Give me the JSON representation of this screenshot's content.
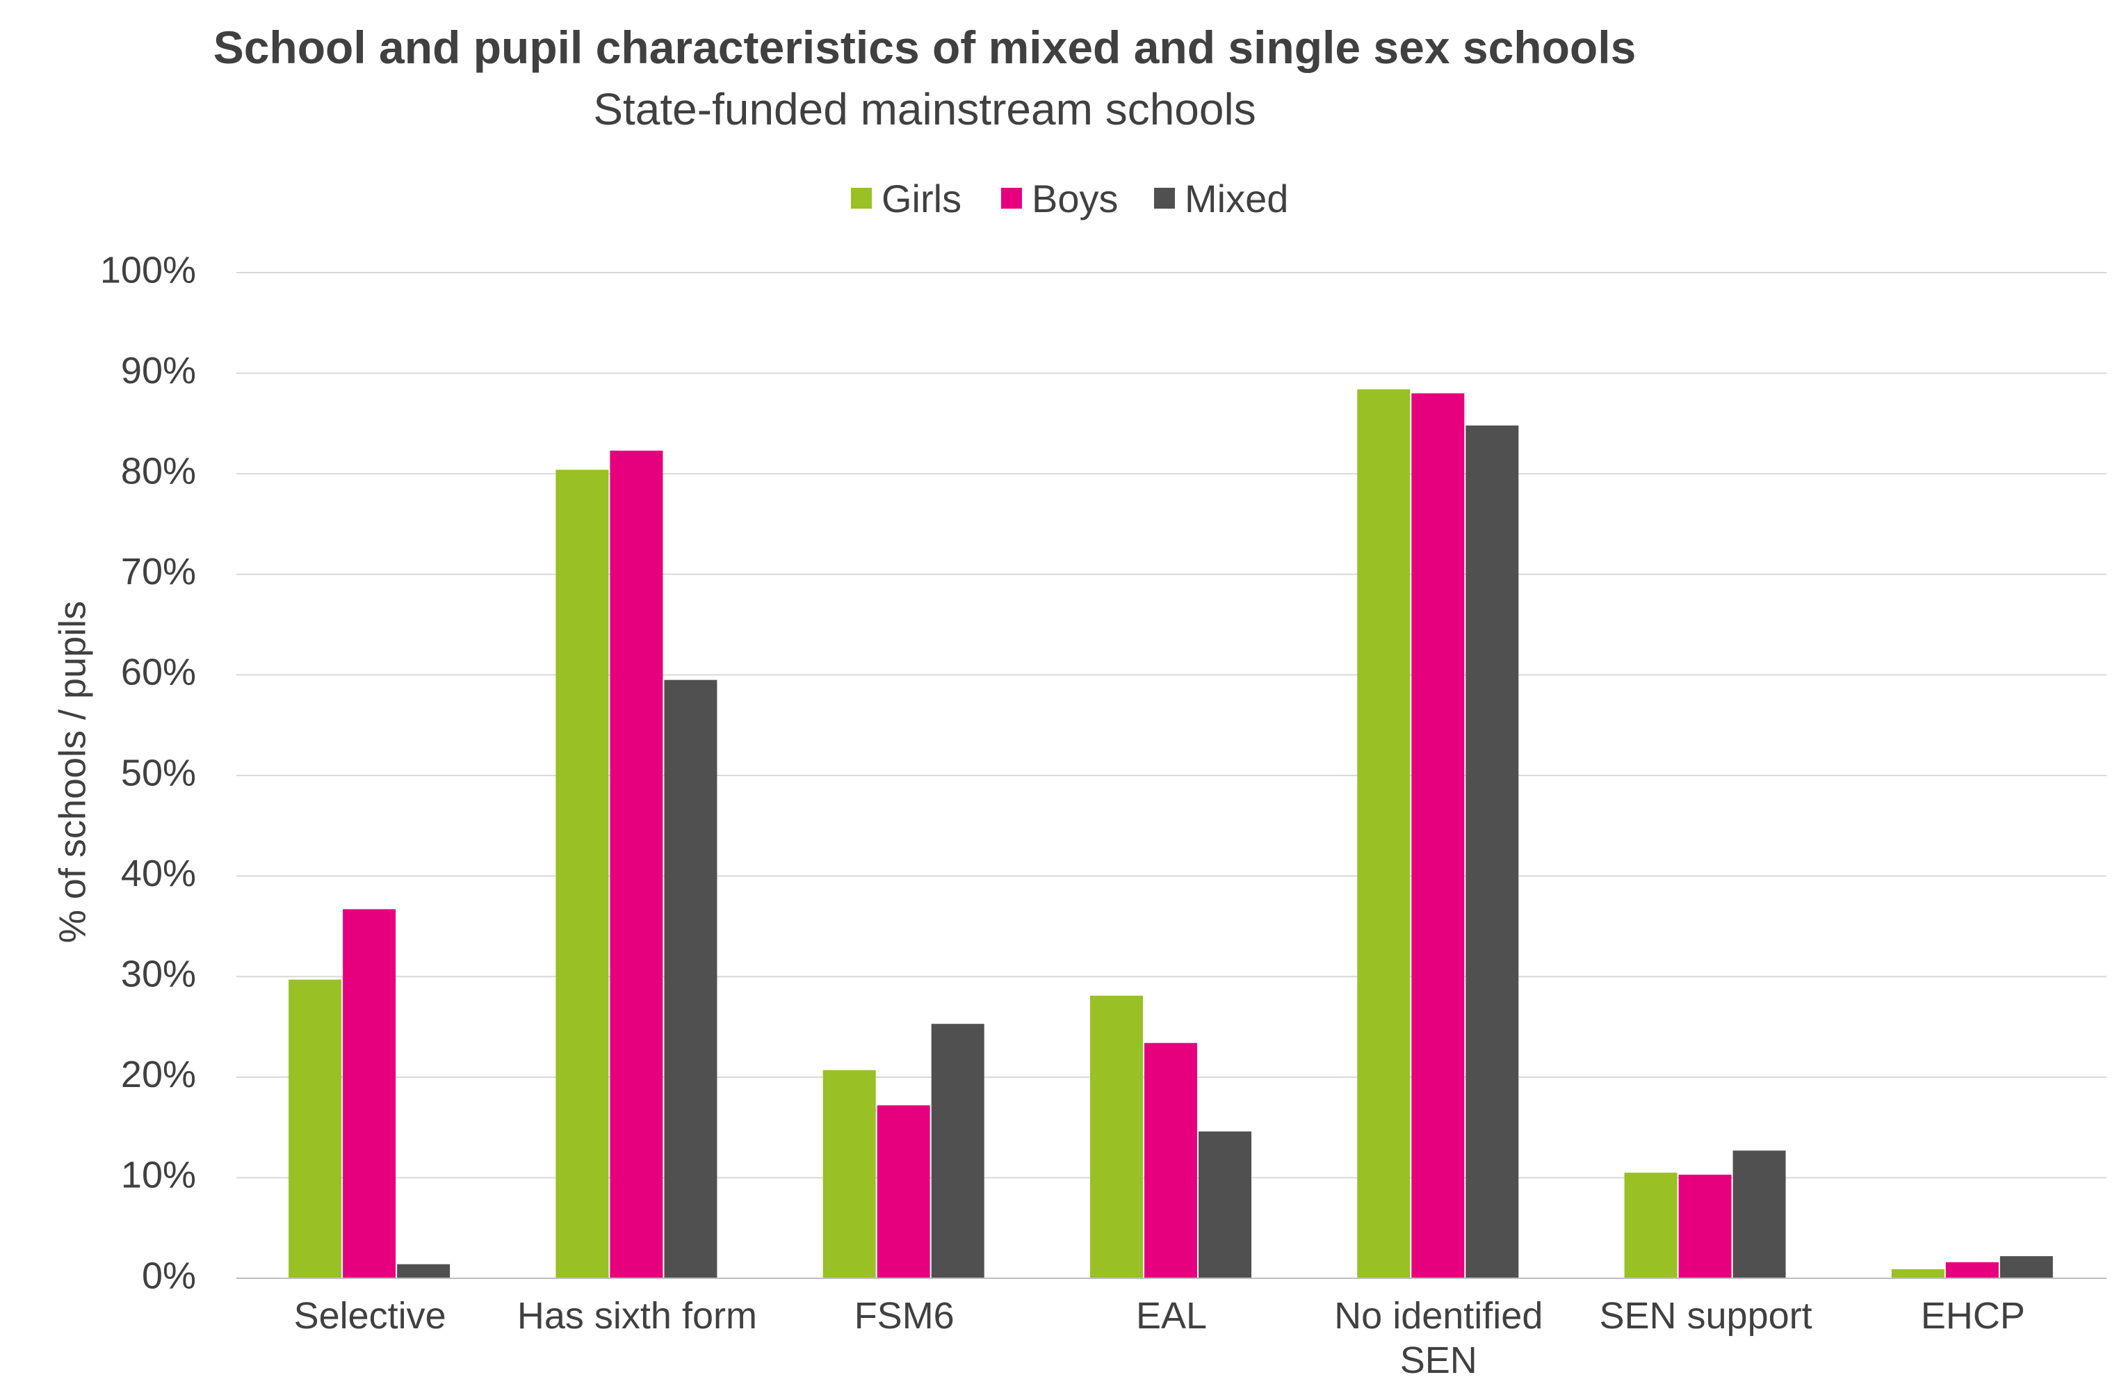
{
  "chart_data": {
    "type": "bar",
    "title": "School and pupil characteristics of mixed and single sex schools",
    "subtitle": "State-funded mainstream schools",
    "xlabel": "",
    "ylabel": "% of schools / pupils",
    "ylim": [
      0,
      100
    ],
    "y_ticks": [
      "0%",
      "10%",
      "20%",
      "30%",
      "40%",
      "50%",
      "60%",
      "70%",
      "80%",
      "90%",
      "100%"
    ],
    "y_tick_values": [
      0,
      10,
      20,
      30,
      40,
      50,
      60,
      70,
      80,
      90,
      100
    ],
    "grid": true,
    "legend_position": "top",
    "categories": [
      [
        "Selective"
      ],
      [
        "Has sixth form"
      ],
      [
        "FSM6"
      ],
      [
        "EAL"
      ],
      [
        "No identified",
        "SEN"
      ],
      [
        "SEN support"
      ],
      [
        "EHCP"
      ]
    ],
    "series": [
      {
        "name": "Girls",
        "color": "#99C024",
        "values": [
          29.7,
          80.4,
          20.7,
          28.1,
          88.4,
          10.5,
          0.9
        ]
      },
      {
        "name": "Boys",
        "color": "#E6007E",
        "values": [
          36.7,
          82.3,
          17.2,
          23.4,
          88.0,
          10.3,
          1.6
        ]
      },
      {
        "name": "Mixed",
        "color": "#505050",
        "values": [
          1.4,
          59.5,
          25.3,
          14.6,
          84.8,
          12.7,
          2.2
        ]
      }
    ],
    "gridline_color": "#D9D9D9",
    "baseline_color": "#BFBFBF"
  }
}
